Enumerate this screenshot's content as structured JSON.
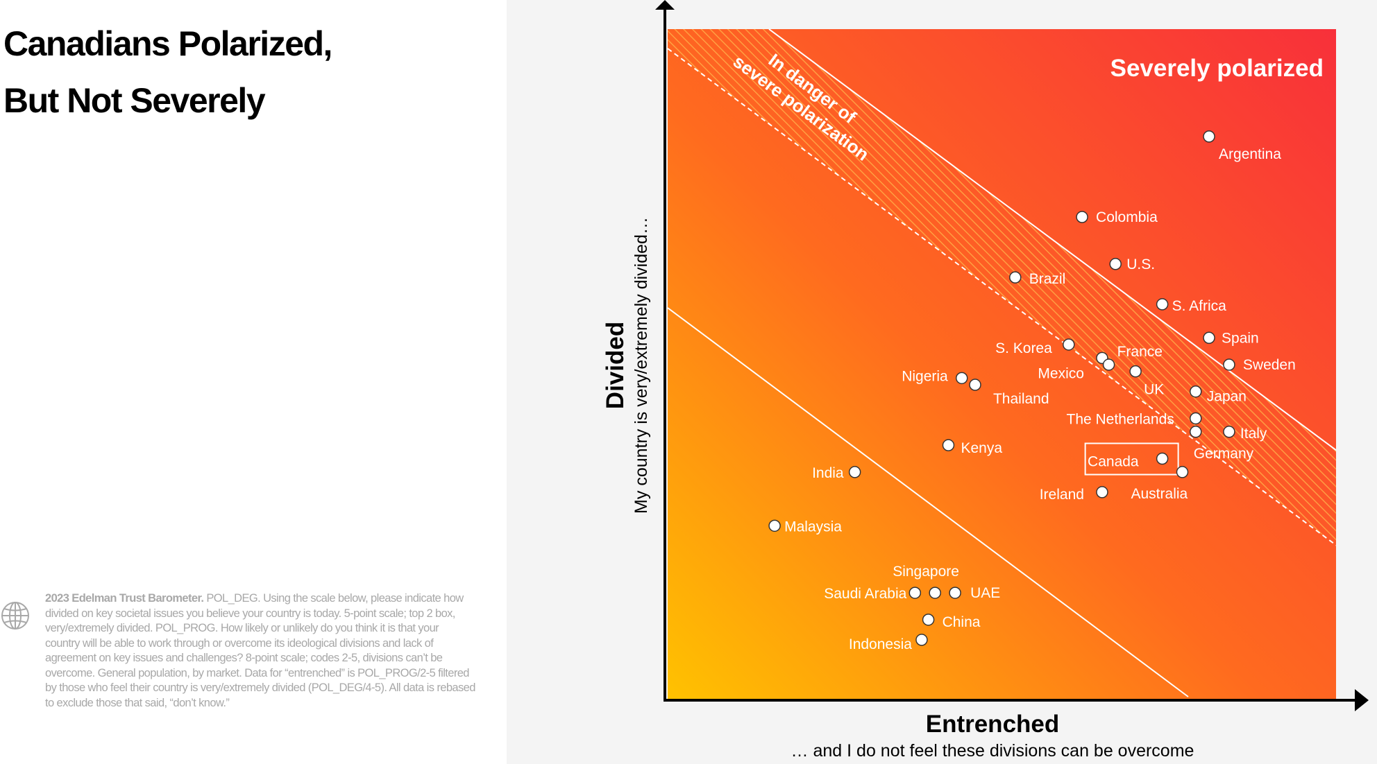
{
  "title": {
    "line1": "Canadians Polarized,",
    "line2": "But Not Severely"
  },
  "source": {
    "bold": "2023 Edelman Trust Barometer.",
    "text": " POL_DEG. Using the scale below, please indicate how divided on key societal issues you believe your country is today. 5-point scale; top 2 box, very/extremely divided. POL_PROG. How likely or unlikely do you think it is that your country will be able to work through or overcome its ideological divisions and lack of agreement on key issues and challenges? 8-point scale; codes 2-5, divisions can’t be overcome. General population, by market. Data for “entrenched” is POL_PROG/2-5 filtered by those who feel their country is very/extremely divided (POL_DEG/4-5). All data is rebased to exclude those that said, “don’t know.”",
    "icon": "globe-icon"
  },
  "colors": {
    "gradient_low": "#FFC200",
    "gradient_mid": "#FF6A1F",
    "gradient_high": "#F8303A",
    "point_fill": "#ffffff",
    "point_stroke": "#333333",
    "highlight_box": "#ffffff"
  },
  "chart_data": {
    "type": "scatter",
    "title": "",
    "xlabel": "Entrenched",
    "xlabel_sub": "… and I do not feel these divisions can be overcome",
    "ylabel": "Divided",
    "ylabel_sub": "My country is very/extremely divided…",
    "axis_ticks": "none",
    "zones": {
      "severe": "Severely polarized",
      "danger": "In danger of severe polarization"
    },
    "highlight": "Canada",
    "points": [
      {
        "name": "Argentina",
        "x": 0.81,
        "y": 0.84
      },
      {
        "name": "Colombia",
        "x": 0.62,
        "y": 0.72
      },
      {
        "name": "U.S.",
        "x": 0.67,
        "y": 0.65
      },
      {
        "name": "Brazil",
        "x": 0.52,
        "y": 0.63
      },
      {
        "name": "S. Africa",
        "x": 0.74,
        "y": 0.59
      },
      {
        "name": "Spain",
        "x": 0.81,
        "y": 0.54
      },
      {
        "name": "S. Korea",
        "x": 0.6,
        "y": 0.53
      },
      {
        "name": "Mexico",
        "x": 0.65,
        "y": 0.51
      },
      {
        "name": "France",
        "x": 0.66,
        "y": 0.5
      },
      {
        "name": "Sweden",
        "x": 0.84,
        "y": 0.5
      },
      {
        "name": "UK",
        "x": 0.7,
        "y": 0.49
      },
      {
        "name": "Nigeria",
        "x": 0.44,
        "y": 0.48
      },
      {
        "name": "Thailand",
        "x": 0.46,
        "y": 0.47
      },
      {
        "name": "Japan",
        "x": 0.79,
        "y": 0.46
      },
      {
        "name": "The Netherlands",
        "x": 0.79,
        "y": 0.42
      },
      {
        "name": "Italy",
        "x": 0.84,
        "y": 0.4
      },
      {
        "name": "Germany",
        "x": 0.79,
        "y": 0.4
      },
      {
        "name": "Kenya",
        "x": 0.42,
        "y": 0.38
      },
      {
        "name": "Canada",
        "x": 0.74,
        "y": 0.36
      },
      {
        "name": "India",
        "x": 0.28,
        "y": 0.34
      },
      {
        "name": "Australia",
        "x": 0.77,
        "y": 0.34
      },
      {
        "name": "Ireland",
        "x": 0.65,
        "y": 0.31
      },
      {
        "name": "Malaysia",
        "x": 0.16,
        "y": 0.26
      },
      {
        "name": "Singapore",
        "x": 0.4,
        "y": 0.16
      },
      {
        "name": "UAE",
        "x": 0.43,
        "y": 0.16
      },
      {
        "name": "Saudi Arabia",
        "x": 0.37,
        "y": 0.16
      },
      {
        "name": "China",
        "x": 0.39,
        "y": 0.12
      },
      {
        "name": "Indonesia",
        "x": 0.38,
        "y": 0.09
      }
    ]
  }
}
